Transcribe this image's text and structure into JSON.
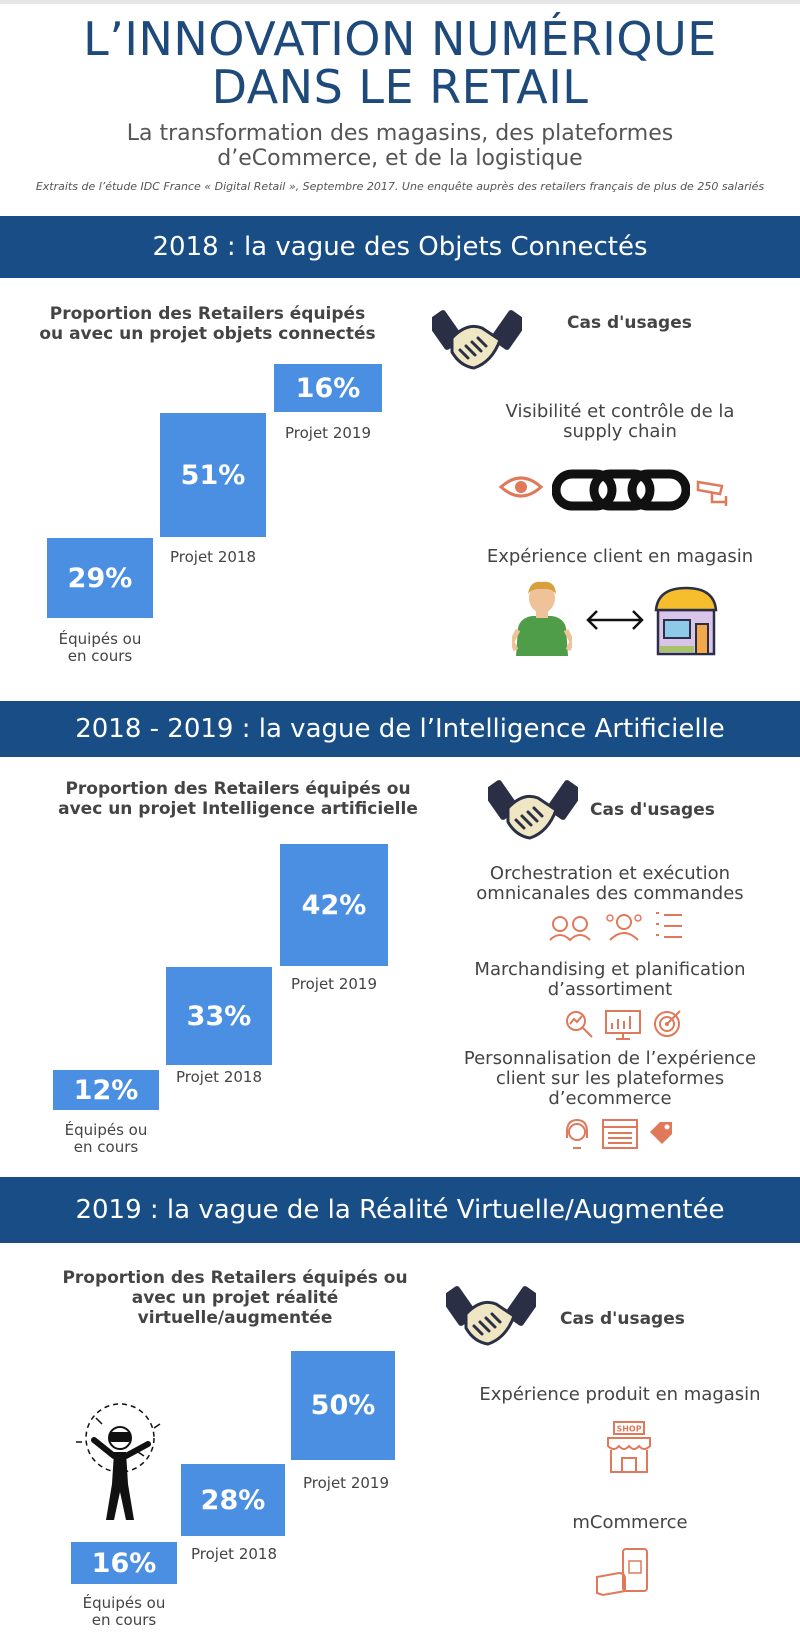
{
  "header": {
    "title_line1": "L’INNOVATION NUMÉRIQUE",
    "title_line2": "DANS LE RETAIL",
    "subtitle_line1": "La transformation des magasins, des plateformes",
    "subtitle_line2": "d’eCommerce, et de la logistique",
    "source": "Extraits de l’étude IDC France « Digital Retail », Septembre 2017. Une enquête auprès des retailers français de plus de 250 salariés"
  },
  "colors": {
    "band": "#184d86",
    "bar": "#4a8fe2",
    "title": "#1d4a7a",
    "icon_accent": "#e0785a"
  },
  "section1": {
    "band": "2018 : la vague des Objets Connectés",
    "heading_line1": "Proportion des Retailers équipés",
    "heading_line2": "ou avec un projet objets connectés",
    "bars": [
      {
        "value": "29%",
        "label_line1": "Équipés ou",
        "label_line2": "en cours"
      },
      {
        "value": "51%",
        "label_line1": "Projet 2018",
        "label_line2": ""
      },
      {
        "value": "16%",
        "label_line1": "Projet 2019",
        "label_line2": ""
      }
    ],
    "cas_title": "Cas d'usages",
    "usage1_line1": "Visibilité et contrôle de la",
    "usage1_line2": "supply chain",
    "usage2": "Expérience client en magasin",
    "icons": [
      "handshake-icon",
      "eye-icon",
      "chain-icon",
      "cctv-camera-icon",
      "person-icon",
      "double-arrow-icon",
      "store-icon"
    ]
  },
  "section2": {
    "band": "2018 - 2019 : la vague de l’Intelligence Artificielle",
    "heading_line1": "Proportion des Retailers équipés ou",
    "heading_line2": "avec un projet Intelligence artificielle",
    "bars": [
      {
        "value": "12%",
        "label_line1": "Équipés ou",
        "label_line2": "en cours"
      },
      {
        "value": "33%",
        "label_line1": "Projet 2018",
        "label_line2": ""
      },
      {
        "value": "42%",
        "label_line1": "Projet 2019",
        "label_line2": ""
      }
    ],
    "cas_title": "Cas d'usages",
    "usage1_line1": "Orchestration et exécution",
    "usage1_line2": "omnicanales des commandes",
    "usage2_line1": "Marchandising et planification",
    "usage2_line2": "d’assortiment",
    "usage3_line1": "Personnalisation de l’expérience",
    "usage3_line2": "client sur les plateformes",
    "usage3_line3": "d’ecommerce",
    "icons": [
      "handshake-icon",
      "people-icon",
      "team-icon",
      "list-icon",
      "search-chart-icon",
      "presentation-icon",
      "target-icon",
      "support-icon",
      "browser-icon",
      "price-tag-icon"
    ]
  },
  "section3": {
    "band": "2019 : la vague de la Réalité Virtuelle/Augmentée",
    "heading_line1": "Proportion des Retailers équipés ou",
    "heading_line2": "avec un projet réalité",
    "heading_line3": "virtuelle/augmentée",
    "bars": [
      {
        "value": "16%",
        "label_line1": "Équipés ou",
        "label_line2": "en cours"
      },
      {
        "value": "28%",
        "label_line1": "Projet 2018",
        "label_line2": ""
      },
      {
        "value": "50%",
        "label_line1": "Projet 2019",
        "label_line2": ""
      }
    ],
    "cas_title": "Cas d'usages",
    "usage1": "Expérience produit en magasin",
    "usage2": "mCommerce",
    "shop_sign": "SHOP",
    "icons": [
      "vr-person-icon",
      "handshake-icon",
      "shop-icon",
      "mobile-payment-icon"
    ]
  }
}
